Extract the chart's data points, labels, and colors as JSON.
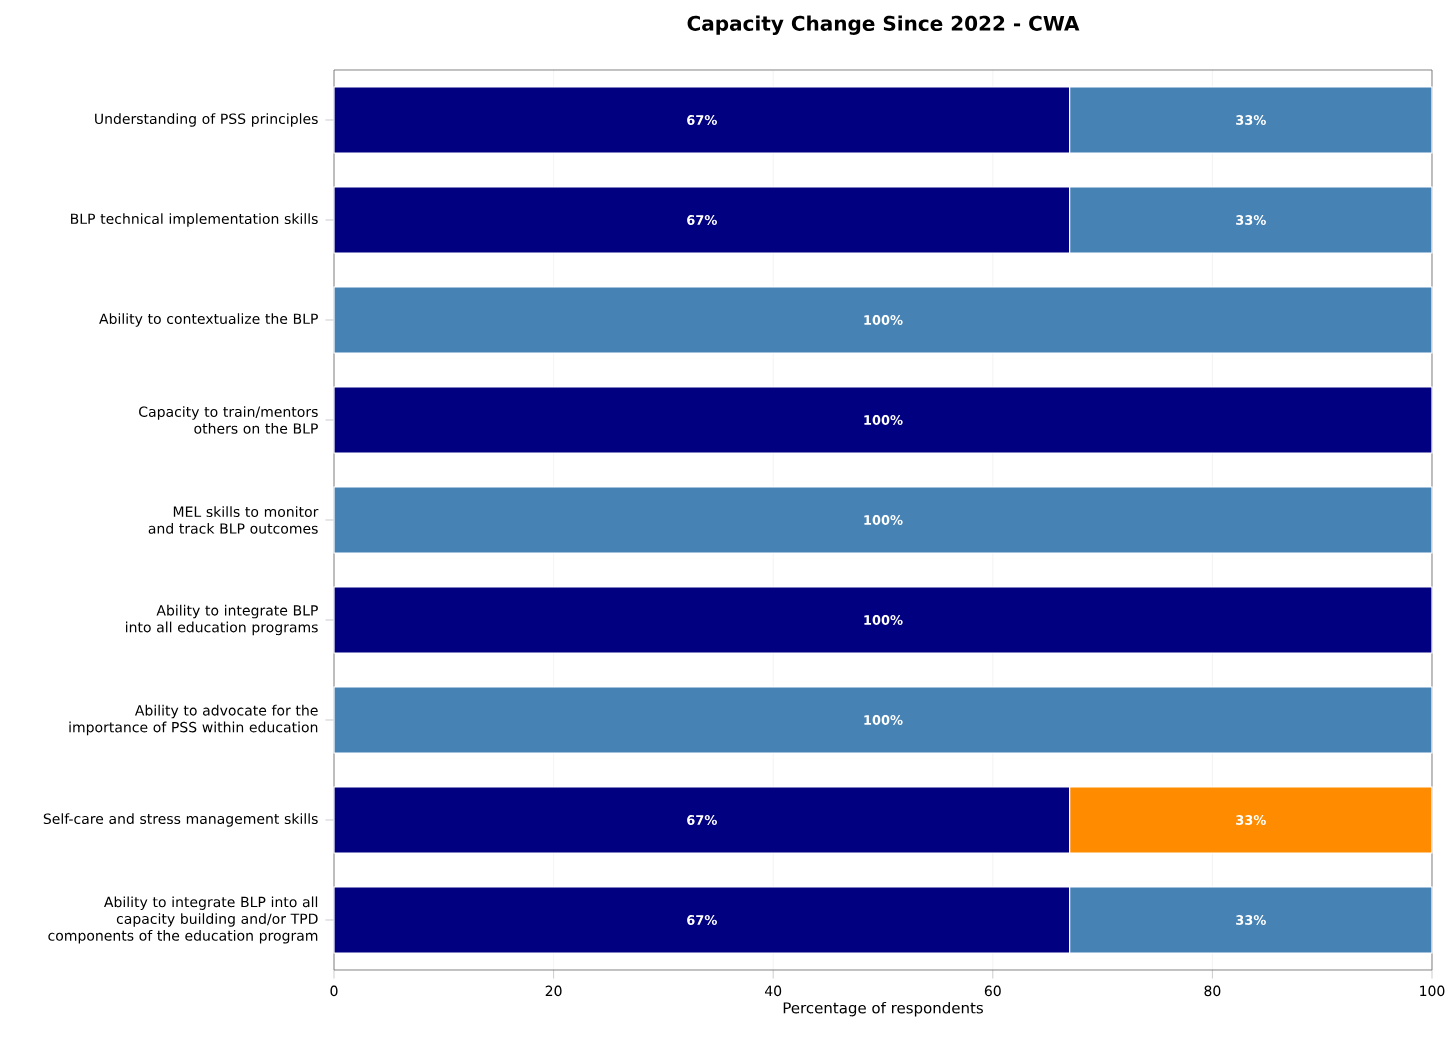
{
  "chart_data": {
    "type": "bar",
    "orientation": "horizontal",
    "stacked": true,
    "title": "Capacity Change Since 2022 - CWA",
    "xlabel": "Percentage of respondents",
    "categories": [
      "Understanding of PSS principles",
      "BLP technical implementation skills",
      "Ability to contextualize the BLP",
      "Capacity to train/mentors others on the BLP",
      "MEL skills to monitor and track BLP outcomes",
      "Ability to integrate BLP into all education programs",
      "Ability to advocate for the importance of PSS within education",
      "Self-care and stress management skills",
      "Ability to integrate BLP into all capacity building and/or TPD components of the education program"
    ],
    "series": [
      {
        "color": "#000080",
        "values": [
          67,
          67,
          null,
          100,
          null,
          100,
          null,
          67,
          67
        ],
        "value_labels": [
          "67%",
          "67%",
          null,
          "100%",
          null,
          "100%",
          null,
          "67%",
          "67%"
        ]
      },
      {
        "color": "#4682b4",
        "values": [
          33,
          33,
          100,
          null,
          100,
          null,
          100,
          null,
          33
        ],
        "value_labels": [
          "33%",
          "33%",
          "100%",
          null,
          "100%",
          null,
          "100%",
          null,
          "33%"
        ]
      },
      {
        "color": "#ff8c00",
        "values": [
          null,
          null,
          null,
          null,
          null,
          null,
          null,
          33,
          null
        ],
        "value_labels": [
          null,
          null,
          null,
          null,
          null,
          null,
          null,
          "33%",
          null
        ]
      }
    ],
    "xlim": [
      0,
      100
    ],
    "xticks": [
      0,
      20,
      40,
      60,
      80,
      100
    ],
    "grid": "x"
  }
}
